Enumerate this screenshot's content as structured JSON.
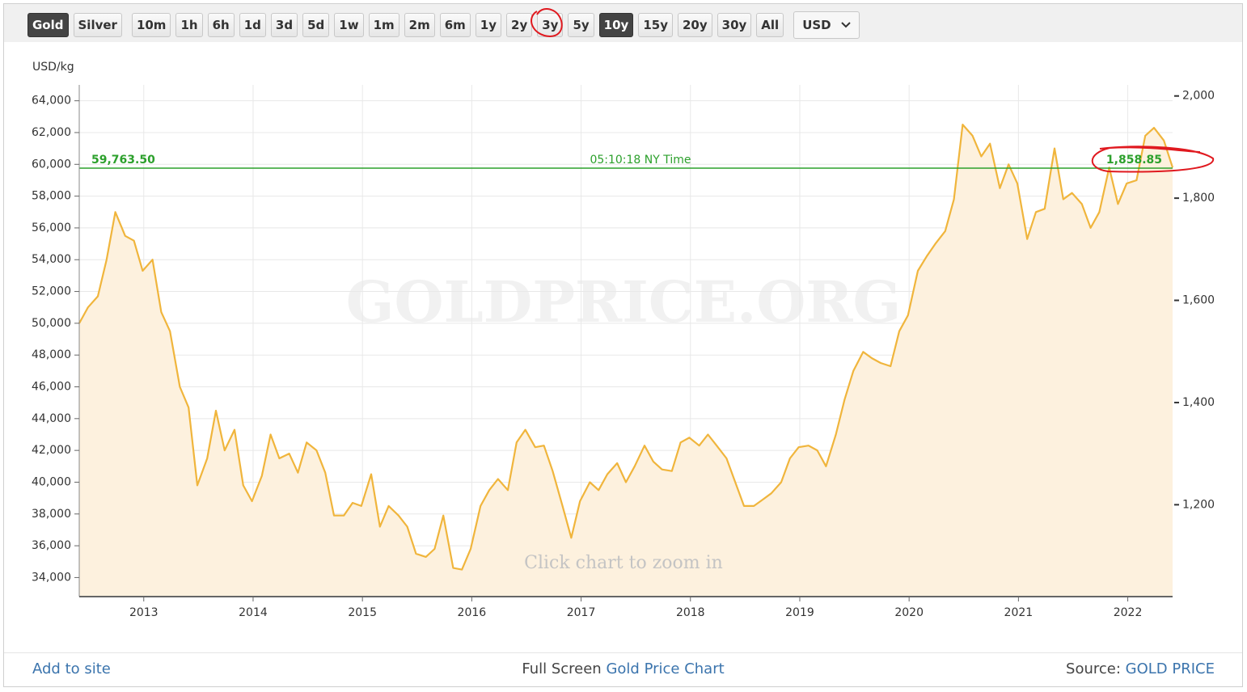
{
  "toolbar": {
    "buttons": [
      {
        "label": "Gold",
        "active": true
      },
      {
        "label": "Silver",
        "active": false
      },
      {
        "label": "10m",
        "active": false
      },
      {
        "label": "1h",
        "active": false
      },
      {
        "label": "6h",
        "active": false
      },
      {
        "label": "1d",
        "active": false
      },
      {
        "label": "3d",
        "active": false
      },
      {
        "label": "5d",
        "active": false
      },
      {
        "label": "1w",
        "active": false
      },
      {
        "label": "1m",
        "active": false
      },
      {
        "label": "2m",
        "active": false
      },
      {
        "label": "6m",
        "active": false
      },
      {
        "label": "1y",
        "active": false
      },
      {
        "label": "2y",
        "active": false
      },
      {
        "label": "3y",
        "active": false
      },
      {
        "label": "5y",
        "active": false
      },
      {
        "label": "10y",
        "active": true
      },
      {
        "label": "15y",
        "active": false
      },
      {
        "label": "20y",
        "active": false
      },
      {
        "label": "30y",
        "active": false
      },
      {
        "label": "All",
        "active": false
      }
    ],
    "currency": "USD"
  },
  "chart_data": {
    "type": "line",
    "y_unit_label": "USD/kg",
    "watermark": "GOLDPRICE.ORG",
    "hint": "Click chart to zoom in",
    "x": [
      2012.41,
      2012.49,
      2012.58,
      2012.66,
      2012.74,
      2012.83,
      2012.91,
      2012.99,
      2013.08,
      2013.16,
      2013.24,
      2013.33,
      2013.41,
      2013.49,
      2013.58,
      2013.66,
      2013.74,
      2013.83,
      2013.91,
      2013.99,
      2014.08,
      2014.16,
      2014.24,
      2014.33,
      2014.41,
      2014.49,
      2014.58,
      2014.66,
      2014.74,
      2014.83,
      2014.91,
      2014.99,
      2015.08,
      2015.16,
      2015.24,
      2015.33,
      2015.41,
      2015.49,
      2015.58,
      2015.66,
      2015.74,
      2015.83,
      2015.91,
      2015.99,
      2016.08,
      2016.16,
      2016.24,
      2016.33,
      2016.41,
      2016.49,
      2016.58,
      2016.66,
      2016.74,
      2016.83,
      2016.91,
      2016.99,
      2017.08,
      2017.16,
      2017.24,
      2017.33,
      2017.41,
      2017.49,
      2017.58,
      2017.66,
      2017.74,
      2017.83,
      2017.91,
      2017.99,
      2018.08,
      2018.16,
      2018.24,
      2018.33,
      2018.41,
      2018.49,
      2018.58,
      2018.66,
      2018.74,
      2018.83,
      2018.91,
      2018.99,
      2019.08,
      2019.16,
      2019.24,
      2019.33,
      2019.41,
      2019.49,
      2019.58,
      2019.66,
      2019.74,
      2019.83,
      2019.91,
      2019.99,
      2020.08,
      2020.16,
      2020.24,
      2020.33,
      2020.41,
      2020.49,
      2020.58,
      2020.66,
      2020.74,
      2020.83,
      2020.91,
      2020.99,
      2021.08,
      2021.16,
      2021.24,
      2021.33,
      2021.41,
      2021.49,
      2021.58,
      2021.66,
      2021.74,
      2021.83,
      2021.91,
      2021.99,
      2022.08,
      2022.16,
      2022.24,
      2022.33,
      2022.41
    ],
    "series": [
      {
        "name": "Gold",
        "color": "#f0b53c",
        "fill": "#fdf1de",
        "values": [
          50000,
          51000,
          51700,
          54000,
          57000,
          55500,
          55200,
          53300,
          54000,
          50700,
          49500,
          46000,
          44700,
          39800,
          41500,
          44500,
          42000,
          43300,
          39800,
          38800,
          40400,
          43000,
          41500,
          41800,
          40600,
          42500,
          42000,
          40600,
          37900,
          37900,
          38700,
          38500,
          40500,
          37200,
          38500,
          37900,
          37200,
          35500,
          35300,
          35800,
          37900,
          34600,
          34500,
          35800,
          38500,
          39500,
          40200,
          39500,
          42500,
          43300,
          42200,
          42300,
          40700,
          38500,
          36500,
          38800,
          40000,
          39500,
          40500,
          41200,
          40000,
          41000,
          42300,
          41300,
          40800,
          40700,
          42500,
          42800,
          42300,
          43000,
          42300,
          41500,
          40000,
          38500,
          38500,
          38900,
          39300,
          40000,
          41500,
          42200,
          42300,
          42000,
          41000,
          43000,
          45200,
          47000,
          48200,
          47800,
          47500,
          47300,
          49500,
          50500,
          53300,
          54200,
          55000,
          55800,
          57800,
          62500,
          61800,
          60500,
          61300,
          58500,
          60000,
          58800,
          55300,
          57000,
          57200,
          61000,
          57800,
          58200,
          57500,
          56000,
          57000,
          59800,
          57500,
          58800,
          59000,
          61800,
          62300,
          61500,
          59800
        ]
      }
    ],
    "current_price": {
      "value": 59763.5,
      "label": "59,763.50",
      "time": "05:10:18 NY Time",
      "value_y2": 1858.85,
      "label_y2": "1,858.85",
      "color": "#2ca02c"
    },
    "xlim": [
      2012.41,
      2022.41
    ],
    "xticks": [
      2013,
      2014,
      2015,
      2016,
      2017,
      2018,
      2019,
      2020,
      2021,
      2022
    ],
    "ylim": [
      32800,
      65000
    ],
    "yticks": [
      {
        "value": 34000,
        "label": "34,000"
      },
      {
        "value": 36000,
        "label": "36,000"
      },
      {
        "value": 38000,
        "label": "38,000"
      },
      {
        "value": 40000,
        "label": "40,000"
      },
      {
        "value": 42000,
        "label": "42,000"
      },
      {
        "value": 44000,
        "label": "44,000"
      },
      {
        "value": 46000,
        "label": "46,000"
      },
      {
        "value": 48000,
        "label": "48,000"
      },
      {
        "value": 50000,
        "label": "50,000"
      },
      {
        "value": 52000,
        "label": "52,000"
      },
      {
        "value": 54000,
        "label": "54,000"
      },
      {
        "value": 56000,
        "label": "56,000"
      },
      {
        "value": 58000,
        "label": "58,000"
      },
      {
        "value": 60000,
        "label": "60,000"
      },
      {
        "value": 62000,
        "label": "62,000"
      },
      {
        "value": 64000,
        "label": "64,000"
      }
    ],
    "y2lim": [
      1020.2,
      2021.7
    ],
    "y2ticks": [
      {
        "value": 1200,
        "label": "1,200"
      },
      {
        "value": 1400,
        "label": "1,400"
      },
      {
        "value": 1600,
        "label": "1,600"
      },
      {
        "value": 1800,
        "label": "1,800"
      },
      {
        "value": 2000,
        "label": "2,000"
      }
    ],
    "grid": true
  },
  "footer": {
    "left": "Add to site",
    "center_prefix": "Full Screen",
    "center_link": "Gold Price Chart",
    "right_prefix": "Source:",
    "right_link": "GOLD PRICE"
  }
}
